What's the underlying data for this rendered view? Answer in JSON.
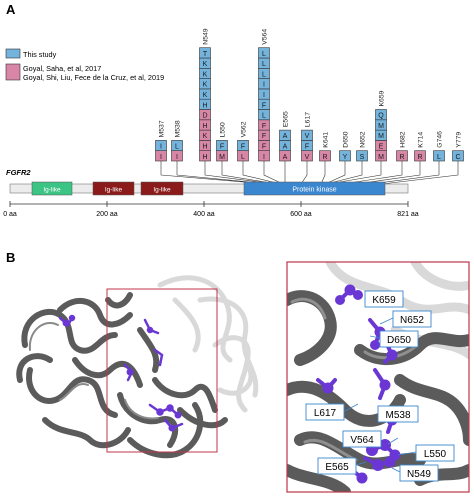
{
  "panel_a_label": "A",
  "panel_b_label": "B",
  "legend": {
    "items": [
      {
        "label": "This study",
        "color": "#74b3dc"
      },
      {
        "label": "Goyal, Saha, et al, 2017",
        "color": "#d886a6"
      },
      {
        "label": "Goyal, Shi, Liu, Fece de la Cruz, et al, 2019",
        "color": "#d886a6"
      }
    ]
  },
  "gene": {
    "name": "FGFR2",
    "axis_ticks": [
      "0 aa",
      "200 aa",
      "400 aa",
      "600 aa",
      "821 aa"
    ],
    "domains": [
      {
        "label": "Ig-like",
        "color": "#3cc484"
      },
      {
        "label": "Ig-like",
        "color": "#8b1a1a"
      },
      {
        "label": "Ig-like",
        "color": "#8b1a1a"
      },
      {
        "label": "Protein kinase",
        "color": "#3a86cf"
      }
    ]
  },
  "colors": {
    "blue": "#74b3dc",
    "pink": "#d886a6"
  },
  "mutations": [
    {
      "site": "M537",
      "stack": [
        [
          "I",
          "p"
        ],
        [
          "I",
          "b"
        ]
      ]
    },
    {
      "site": "M538",
      "stack": [
        [
          "I",
          "p"
        ],
        [
          "L",
          "b"
        ]
      ]
    },
    {
      "site": "N549",
      "stack": [
        [
          "H",
          "p"
        ],
        [
          "H",
          "p"
        ],
        [
          "K",
          "p"
        ],
        [
          "H",
          "p"
        ],
        [
          "D",
          "p"
        ],
        [
          "H",
          "b"
        ],
        [
          "K",
          "b"
        ],
        [
          "K",
          "b"
        ],
        [
          "K",
          "b"
        ],
        [
          "K",
          "b"
        ],
        [
          "T",
          "b"
        ]
      ]
    },
    {
      "site": "L550",
      "stack": [
        [
          "M",
          "p"
        ],
        [
          "F",
          "b"
        ]
      ]
    },
    {
      "site": "V562",
      "stack": [
        [
          "L",
          "p"
        ],
        [
          "F",
          "b"
        ]
      ]
    },
    {
      "site": "V564",
      "stack": [
        [
          "I",
          "p"
        ],
        [
          "F",
          "p"
        ],
        [
          "F",
          "p"
        ],
        [
          "F",
          "p"
        ],
        [
          "L",
          "b"
        ],
        [
          "F",
          "b"
        ],
        [
          "I",
          "b"
        ],
        [
          "I",
          "b"
        ],
        [
          "L",
          "b"
        ],
        [
          "L",
          "b"
        ],
        [
          "L",
          "b"
        ]
      ]
    },
    {
      "site": "E565",
      "stack": [
        [
          "A",
          "p"
        ],
        [
          "A",
          "b"
        ],
        [
          "A",
          "b"
        ]
      ]
    },
    {
      "site": "L617",
      "stack": [
        [
          "V",
          "p"
        ],
        [
          "F",
          "b"
        ],
        [
          "V",
          "b"
        ]
      ]
    },
    {
      "site": "K641",
      "stack": [
        [
          "R",
          "p"
        ]
      ]
    },
    {
      "site": "D650",
      "stack": [
        [
          "Y",
          "b"
        ]
      ]
    },
    {
      "site": "N652",
      "stack": [
        [
          "S",
          "b"
        ]
      ]
    },
    {
      "site": "K659",
      "stack": [
        [
          "M",
          "p"
        ],
        [
          "E",
          "p"
        ],
        [
          "M",
          "b"
        ],
        [
          "M",
          "b"
        ],
        [
          "Q",
          "b"
        ]
      ]
    },
    {
      "site": "H682",
      "stack": [
        [
          "R",
          "p"
        ]
      ]
    },
    {
      "site": "K714",
      "stack": [
        [
          "R",
          "p"
        ]
      ]
    },
    {
      "site": "G746",
      "stack": [
        [
          "L",
          "b"
        ]
      ]
    },
    {
      "site": "Y779",
      "stack": [
        [
          "C",
          "b"
        ]
      ]
    }
  ],
  "structure_labels": [
    "K659",
    "N652",
    "D650",
    "L617",
    "M538",
    "V564",
    "L550",
    "E565",
    "N549"
  ],
  "structure_colors": {
    "ribbon": "#5b5b5b",
    "ribbon_light": "#d6d6d6",
    "residue": "#6a37d4",
    "box": "#c0344a",
    "label_border": "#3a86cf"
  }
}
